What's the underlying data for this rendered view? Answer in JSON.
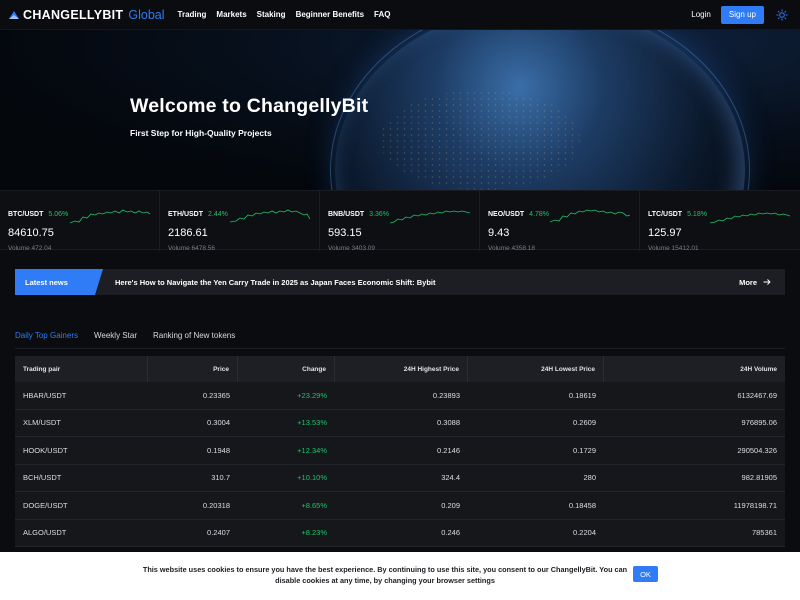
{
  "header": {
    "logo_text": "CHANGELLYBIT",
    "logo_sub": "Global",
    "nav": [
      "Trading",
      "Markets",
      "Staking",
      "Beginner Benefits",
      "FAQ"
    ],
    "login_label": "Login",
    "signup_label": "Sign up"
  },
  "hero": {
    "title": "Welcome to ChangellyBit",
    "subtitle": "First Step for High-Quality Projects"
  },
  "ticker": [
    {
      "pair": "BTC/USDT",
      "change": "5.06%",
      "price": "84610.75",
      "volume": "Volume 472.04"
    },
    {
      "pair": "ETH/USDT",
      "change": "2.44%",
      "price": "2186.61",
      "volume": "Volume 6478.56"
    },
    {
      "pair": "BNB/USDT",
      "change": "3.36%",
      "price": "593.15",
      "volume": "Volume 3403.09"
    },
    {
      "pair": "NEO/USDT",
      "change": "4.78%",
      "price": "9.43",
      "volume": "Volume 4358.18"
    },
    {
      "pair": "LTC/USDT",
      "change": "5.18%",
      "price": "125.97",
      "volume": "Volume 15412.01"
    }
  ],
  "news": {
    "tag": "Latest news",
    "headline": "Here's How to Navigate the Yen Carry Trade in 2025 as Japan Faces Economic Shift: Bybit",
    "more_label": "More"
  },
  "tabs": [
    {
      "label": "Daily Top Gainers",
      "active": true
    },
    {
      "label": "Weekly Star",
      "active": false
    },
    {
      "label": "Ranking of New tokens",
      "active": false
    }
  ],
  "table": {
    "headers": [
      "Trading pair",
      "Price",
      "Change",
      "24H Highest Price",
      "24H Lowest Price",
      "24H Volume"
    ],
    "rows": [
      [
        "HBAR/USDT",
        "0.23365",
        "+23.29%",
        "0.23893",
        "0.18619",
        "6132467.69"
      ],
      [
        "XLM/USDT",
        "0.3004",
        "+13.53%",
        "0.3088",
        "0.2609",
        "976895.06"
      ],
      [
        "HOOK/USDT",
        "0.1948",
        "+12.34%",
        "0.2146",
        "0.1729",
        "290504.326"
      ],
      [
        "BCH/USDT",
        "310.7",
        "+10.10%",
        "324.4",
        "280",
        "982.81905"
      ],
      [
        "DOGE/USDT",
        "0.20318",
        "+8.65%",
        "0.209",
        "0.18458",
        "11978198.71"
      ],
      [
        "ALGO/USDT",
        "0.2407",
        "+8.23%",
        "0.246",
        "0.2204",
        "785361"
      ]
    ]
  },
  "cookie": {
    "text": "This website uses cookies to ensure you have the best experience. By continuing to use this site, you consent to our ChangellyBit. You can disable cookies at any time, by changing your browser settings",
    "ok_label": "OK"
  },
  "colors": {
    "accent": "#2f7cf6",
    "positive": "#1ec26a",
    "background": "#0b0c0f"
  },
  "icons": {
    "logo": "changellybit-logo-icon",
    "theme": "sun-icon",
    "more": "arrow-right-icon"
  }
}
